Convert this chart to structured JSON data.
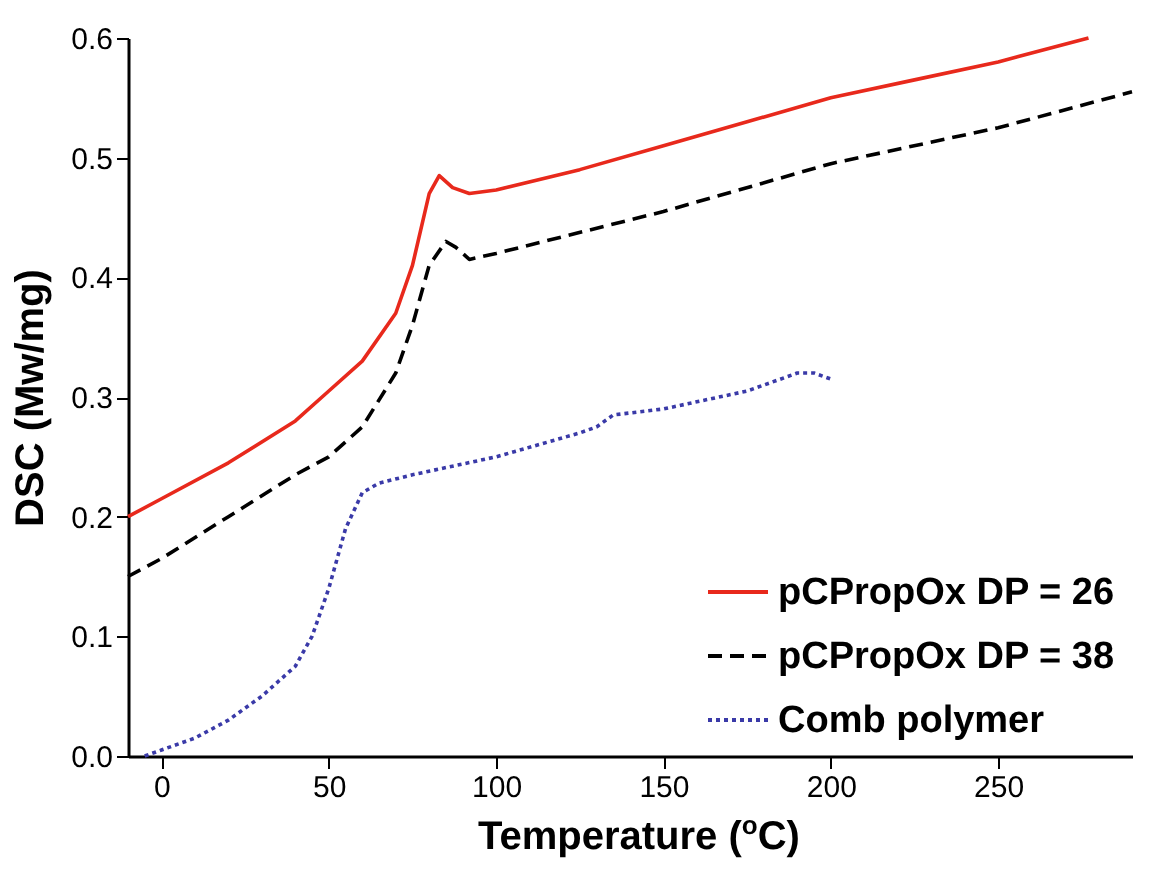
{
  "chart_data": {
    "type": "line",
    "xlabel": "Temperature ($^{o}$C)",
    "ylabel": "DSC (Mw/mg)",
    "xlim": [
      -10,
      290
    ],
    "ylim": [
      0,
      0.6
    ],
    "xticks": [
      0,
      50,
      100,
      150,
      200,
      250
    ],
    "yticks": [
      {
        "value": 0,
        "label": "0.0"
      },
      0.1,
      0.2,
      0.3,
      0.4,
      0.5,
      0.6
    ],
    "grid": false,
    "legend": "bottom right",
    "marker": "none",
    "series": [
      {
        "name": "pCPropOx DP = 26",
        "color": "#e8291c",
        "line_style": "solid",
        "x": [
          -10,
          0,
          20,
          40,
          50,
          60,
          70,
          75,
          80,
          83,
          87,
          92,
          100,
          125,
          150,
          175,
          200,
          225,
          250,
          277
        ],
        "values": [
          0.2,
          0.215,
          0.245,
          0.28,
          0.305,
          0.33,
          0.37,
          0.41,
          0.47,
          0.485,
          0.475,
          0.47,
          0.473,
          0.49,
          0.51,
          0.53,
          0.55,
          0.565,
          0.58,
          0.6
        ]
      },
      {
        "name": "pCPropOx DP = 38",
        "color": "#000000",
        "line_style": "dashed",
        "x": [
          -10,
          0,
          20,
          40,
          50,
          60,
          70,
          75,
          80,
          85,
          88,
          92,
          100,
          150,
          200,
          250,
          290
        ],
        "values": [
          0.15,
          0.165,
          0.2,
          0.235,
          0.25,
          0.275,
          0.32,
          0.36,
          0.41,
          0.43,
          0.425,
          0.415,
          0.42,
          0.455,
          0.495,
          0.525,
          0.555
        ]
      },
      {
        "name": "Comb polymer",
        "color": "#3a3aa8",
        "line_style": "dotted",
        "x": [
          -5,
          0,
          10,
          20,
          30,
          40,
          45,
          50,
          55,
          60,
          65,
          75,
          100,
          125,
          130,
          135,
          150,
          175,
          190,
          195,
          200
        ],
        "values": [
          0,
          0.005,
          0.015,
          0.03,
          0.05,
          0.075,
          0.1,
          0.14,
          0.19,
          0.22,
          0.228,
          0.235,
          0.25,
          0.27,
          0.275,
          0.285,
          0.29,
          0.305,
          0.32,
          0.32,
          0.315
        ]
      }
    ]
  }
}
